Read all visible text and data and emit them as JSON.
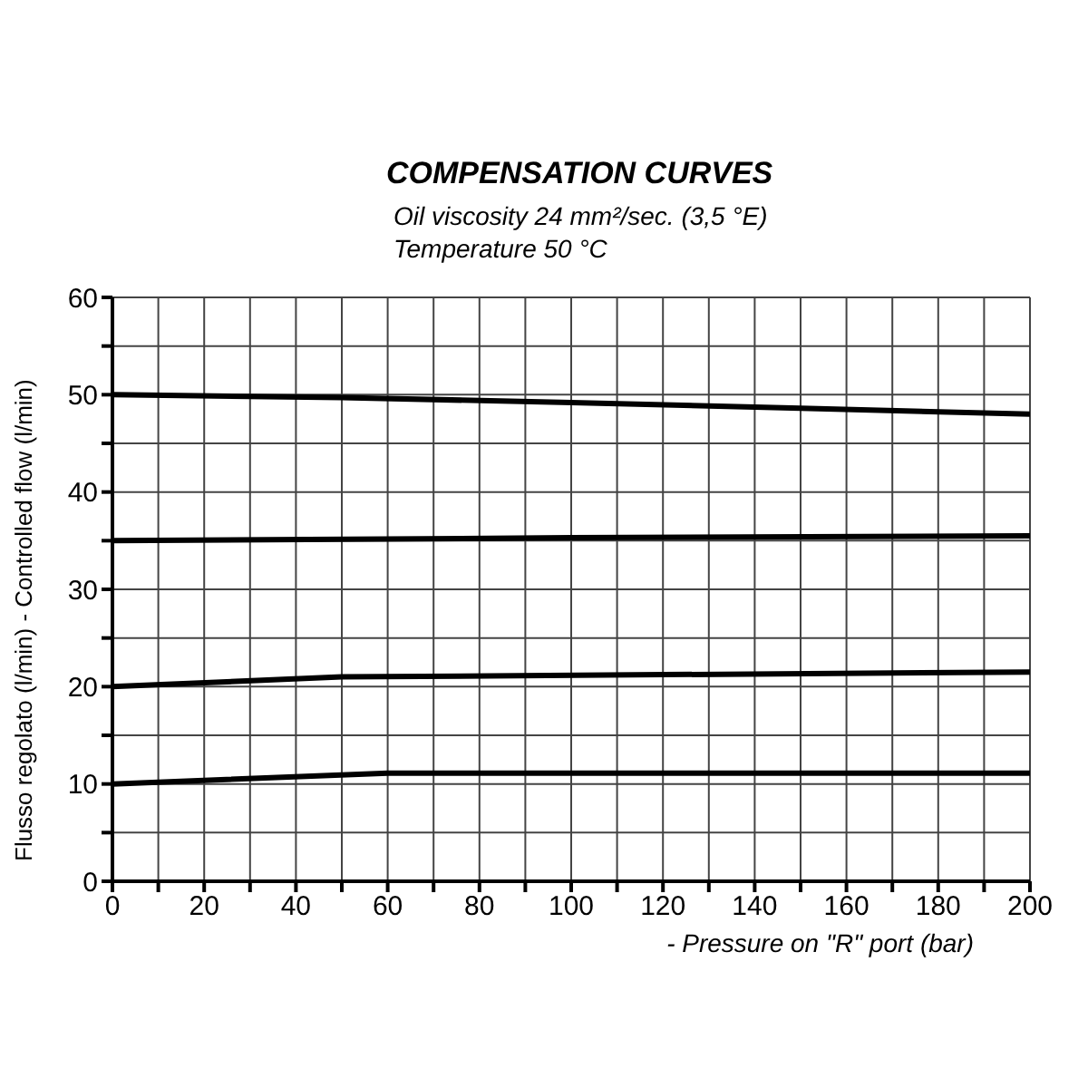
{
  "chart_data": {
    "type": "line",
    "title": "COMPENSATION CURVES",
    "subtitle": "Oil viscosity 24 mm²/sec. (3,5 °E)\nTemperature 50 °C",
    "xlabel": "- Pressure on \"R\" port (bar)",
    "ylabel": "Flusso regolato (l/min) - Controlled flow (l/min)",
    "series": [
      {
        "color": "#000000",
        "x": [
          0,
          50,
          100,
          150,
          200
        ],
        "values": [
          50,
          49.7,
          49.2,
          48.6,
          48
        ]
      },
      {
        "color": "#000000",
        "x": [
          0,
          100,
          200
        ],
        "values": [
          35,
          35.3,
          35.5
        ]
      },
      {
        "color": "#000000",
        "x": [
          0,
          50,
          200
        ],
        "values": [
          20,
          21,
          21.5
        ]
      },
      {
        "color": "#000000",
        "x": [
          0,
          60,
          200
        ],
        "values": [
          10,
          11.1,
          11.1
        ]
      }
    ],
    "xlim": [
      0,
      200
    ],
    "ylim": [
      0,
      60
    ],
    "xticks": [
      0,
      {
        "value": 10,
        "label": null
      },
      20,
      {
        "value": 30,
        "label": null
      },
      40,
      {
        "value": 50,
        "label": null
      },
      60,
      {
        "value": 70,
        "label": null
      },
      80,
      {
        "value": 90,
        "label": null
      },
      100,
      {
        "value": 110,
        "label": null
      },
      120,
      {
        "value": 130,
        "label": null
      },
      140,
      {
        "value": 150,
        "label": null
      },
      160,
      {
        "value": 170,
        "label": null
      },
      180,
      {
        "value": 190,
        "label": null
      },
      200
    ],
    "yticks": [
      0,
      {
        "value": 5,
        "label": null
      },
      10,
      {
        "value": 15,
        "label": null
      },
      20,
      {
        "value": 25,
        "label": null
      },
      30,
      {
        "value": 35,
        "label": null
      },
      40,
      {
        "value": 45,
        "label": null
      },
      50,
      {
        "value": 55,
        "label": null
      },
      60
    ],
    "grid": true,
    "line_style": "solid"
  }
}
